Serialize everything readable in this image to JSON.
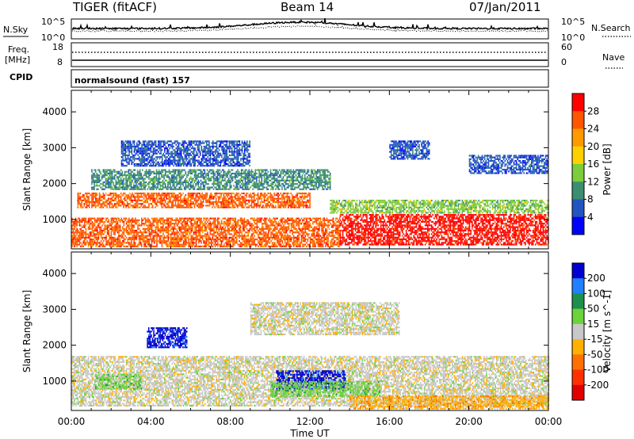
{
  "header": {
    "radar": "TIGER (fitACF)",
    "beam": "Beam 14",
    "date": "07/Jan/2011"
  },
  "nsky_panel": {
    "left_label": "N.Sky",
    "right_label": "N.Search",
    "left_ticks": [
      "10^5",
      "10^0"
    ],
    "right_ticks": [
      "10^5",
      "10^0"
    ]
  },
  "freq_panel": {
    "left_label_line1": "Freq.",
    "left_label_line2": "[MHz]",
    "left_ticks": [
      "18",
      "8"
    ],
    "right_label": "Nave",
    "right_ticks": [
      "60",
      "0"
    ]
  },
  "cpid_panel": {
    "label": "CPID",
    "text": "normalsound (fast) 157"
  },
  "chart_data": [
    {
      "type": "heatmap",
      "name": "power",
      "xlabel": "Time UT",
      "ylabel": "Slant Range [km]",
      "x_range_hours": [
        0,
        24
      ],
      "ylim": [
        180,
        4600
      ],
      "y_ticks": [
        1000,
        2000,
        3000,
        4000
      ],
      "colorbar": {
        "label": "Power [dB]",
        "tick_labels": [
          "28",
          "24",
          "20",
          "16",
          "12",
          "8",
          "4"
        ],
        "colors": [
          "#ff0000",
          "#ff5500",
          "#ff9900",
          "#ffd000",
          "#7ccd3c",
          "#3b8f6e",
          "#2255c0",
          "#0000ff"
        ]
      },
      "regions": [
        {
          "t0": 0.0,
          "t1": 13.5,
          "r0": 250,
          "r1": 1050,
          "level": 1
        },
        {
          "t0": 0.3,
          "t1": 12.0,
          "r0": 1350,
          "r1": 1750,
          "level": 1
        },
        {
          "t0": 13.5,
          "t1": 24.0,
          "r0": 300,
          "r1": 1150,
          "level": 0
        },
        {
          "t0": 1.0,
          "t1": 13.0,
          "r0": 1850,
          "r1": 2400,
          "level": 5
        },
        {
          "t0": 2.5,
          "t1": 9.0,
          "r0": 2500,
          "r1": 3200,
          "level": 6
        },
        {
          "t0": 16.0,
          "t1": 18.0,
          "r0": 2700,
          "r1": 3200,
          "level": 6
        },
        {
          "t0": 20.0,
          "t1": 24.0,
          "r0": 2300,
          "r1": 2800,
          "level": 6
        },
        {
          "t0": 13.0,
          "t1": 24.0,
          "r0": 1200,
          "r1": 1550,
          "level": 4
        }
      ]
    },
    {
      "type": "heatmap",
      "name": "velocity",
      "xlabel": "Time UT",
      "ylabel": "Slant Range [km]",
      "x_range_hours": [
        0,
        24
      ],
      "ylim": [
        180,
        4600
      ],
      "y_ticks": [
        1000,
        2000,
        3000,
        4000
      ],
      "x_ticks": [
        "00:00",
        "04:00",
        "08:00",
        "12:00",
        "16:00",
        "20:00",
        "00:00"
      ],
      "colorbar": {
        "label": "Velocity [m s^-1]",
        "tick_labels": [
          "200",
          "100",
          "50",
          "15",
          "-15",
          "-50",
          "-100",
          "-200"
        ],
        "colors": [
          "#0000d0",
          "#2080ff",
          "#1e8f4e",
          "#6dd23c",
          "#c8c8c8",
          "#ffb000",
          "#ff7000",
          "#ff3000",
          "#e00000"
        ]
      },
      "regions": [
        {
          "t0": 0.0,
          "t1": 24.0,
          "r0": 300,
          "r1": 1700,
          "level": 4
        },
        {
          "t0": 3.8,
          "t1": 5.8,
          "r0": 1950,
          "r1": 2500,
          "level": 0
        },
        {
          "t0": 10.3,
          "t1": 13.8,
          "r0": 800,
          "r1": 1300,
          "level": 0
        },
        {
          "t0": 1.2,
          "t1": 3.5,
          "r0": 800,
          "r1": 1200,
          "level": 3
        },
        {
          "t0": 10.0,
          "t1": 15.5,
          "r0": 600,
          "r1": 1000,
          "level": 3
        },
        {
          "t0": 14.0,
          "t1": 24.0,
          "r0": 250,
          "r1": 600,
          "level": 5
        },
        {
          "t0": 9.0,
          "t1": 16.5,
          "r0": 2300,
          "r1": 3200,
          "level": 4
        }
      ]
    }
  ]
}
